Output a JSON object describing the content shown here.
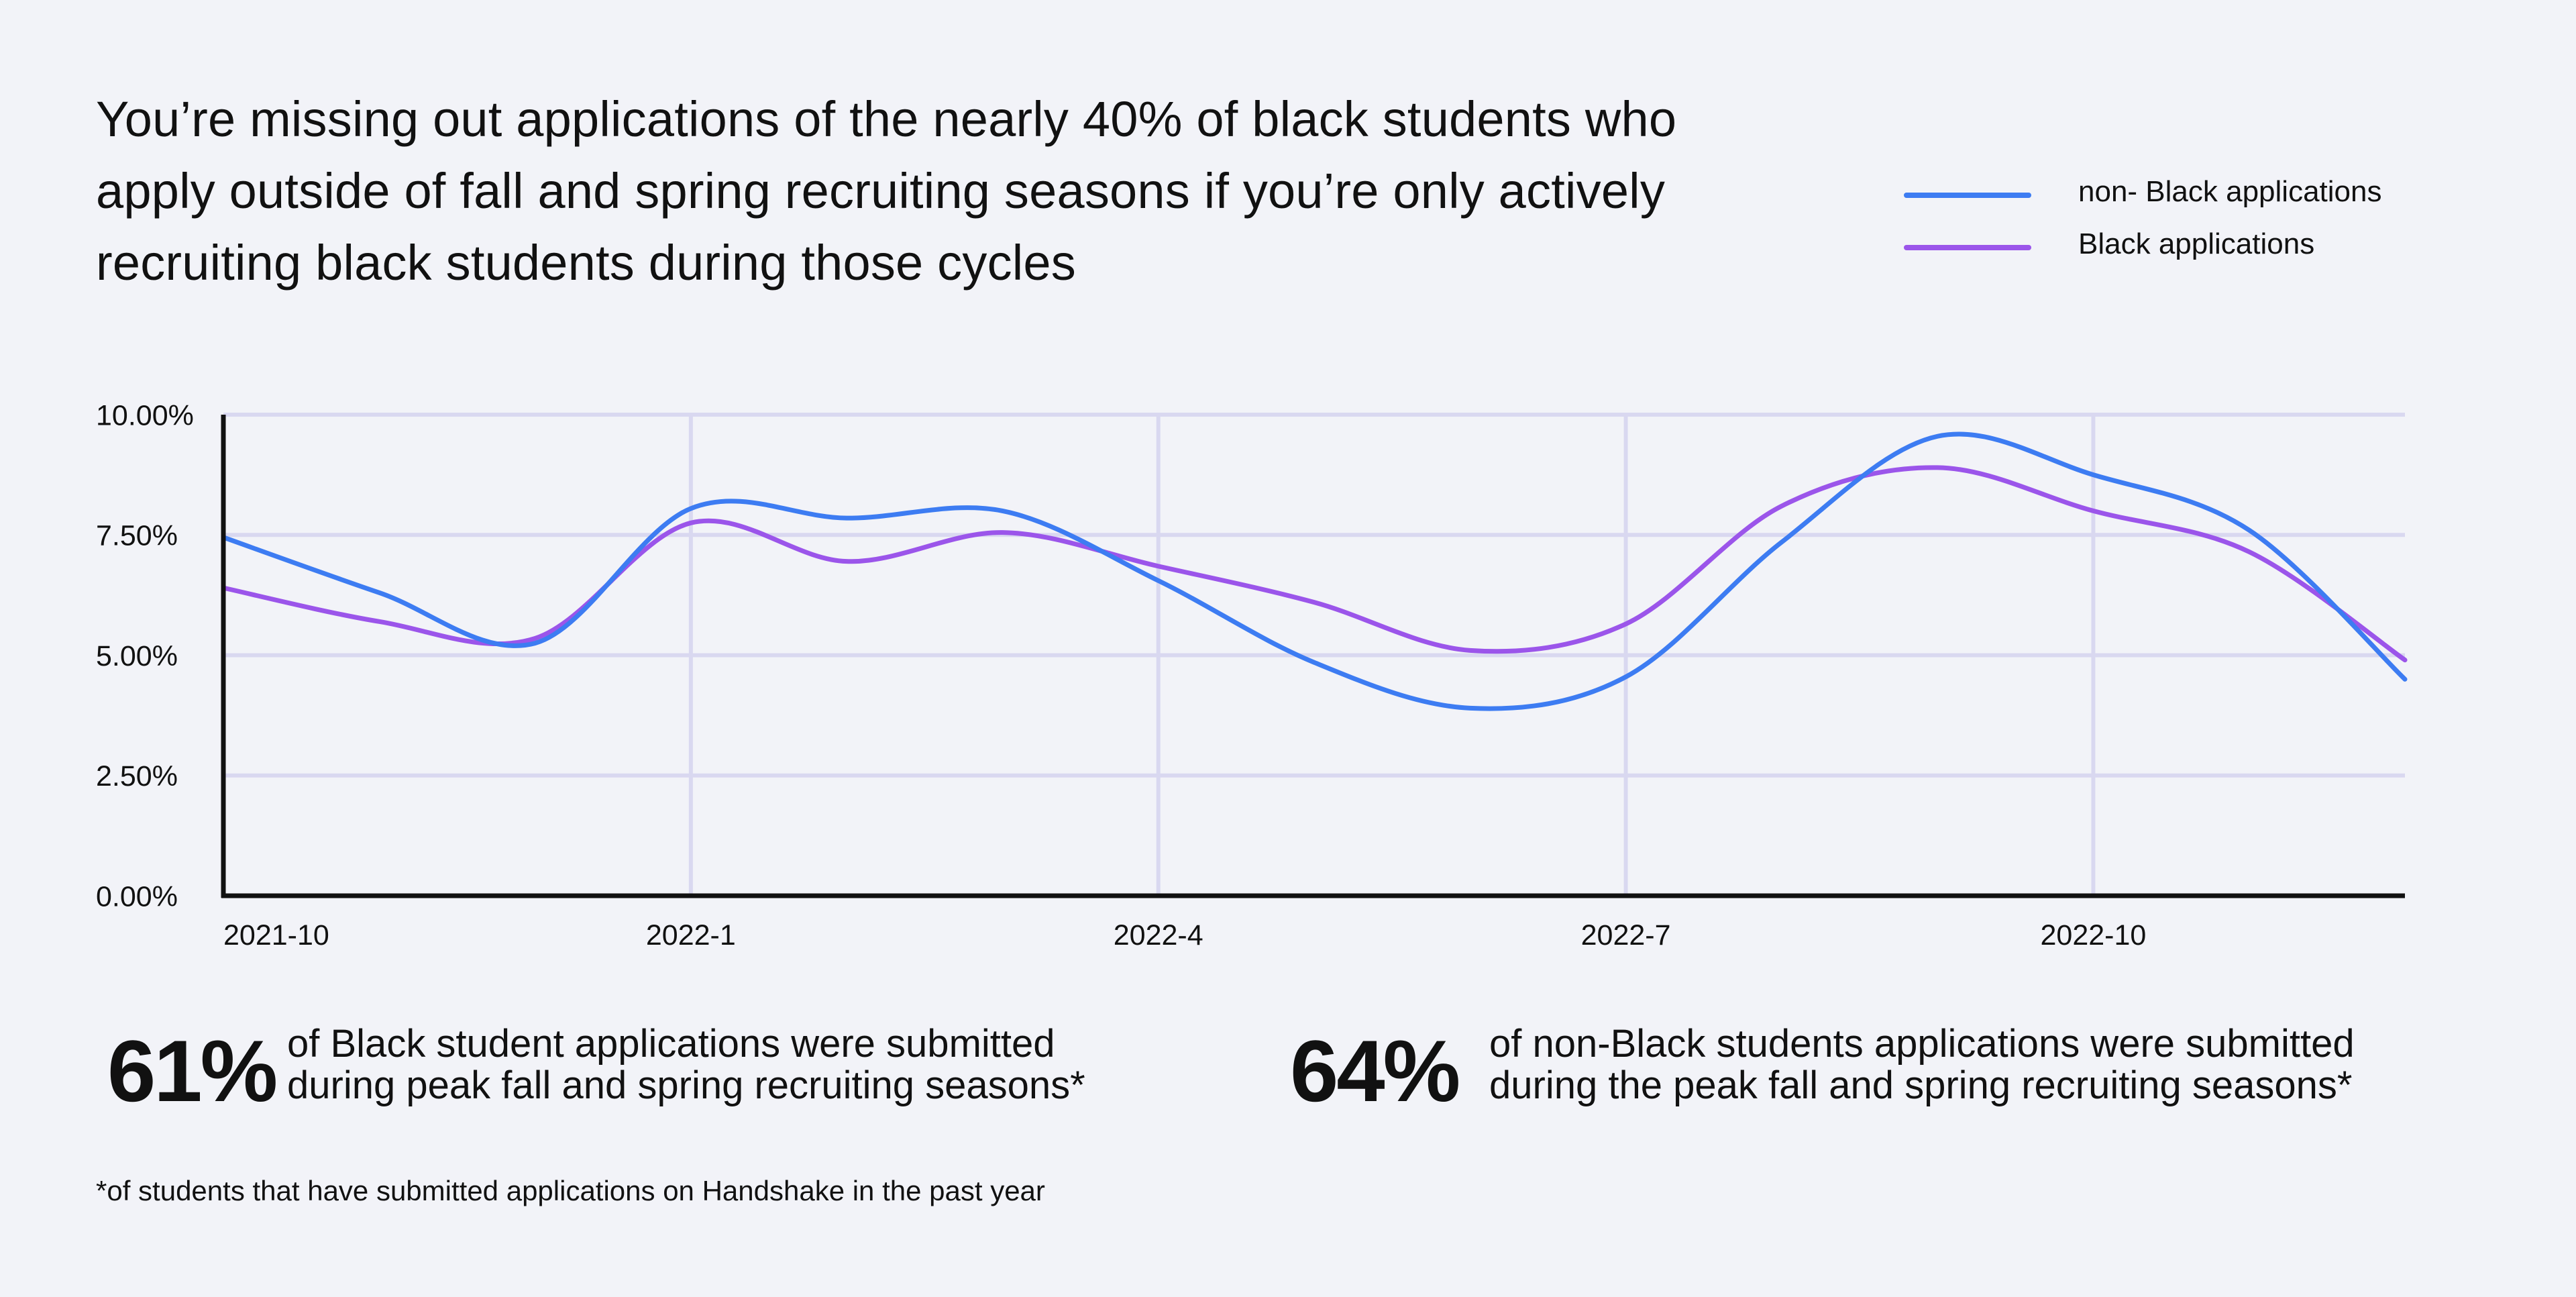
{
  "headline": "You’re missing out applications of the nearly 40% of black students who apply outside of fall and spring recruiting seasons if you’re only actively recruiting black students during those cycles",
  "colors": {
    "background": "#f2f3f8",
    "non_black": "#3d7cf2",
    "black": "#9b55ea",
    "grid": "#d9d8f0",
    "axis": "#111111"
  },
  "chart_data": {
    "type": "line",
    "title": "",
    "xlabel": "",
    "ylabel": "",
    "x": [
      "2021-10",
      "2021-11",
      "2021-12",
      "2022-1",
      "2022-2",
      "2022-3",
      "2022-4",
      "2022-5",
      "2022-6",
      "2022-7",
      "2022-8",
      "2022-9",
      "2022-10",
      "2022-11",
      "2022-12"
    ],
    "x_tick_labels": [
      "2021-10",
      "2022-1",
      "2022-4",
      "2022-7",
      "2022-10"
    ],
    "x_tick_indices": [
      0,
      3,
      6,
      9,
      12
    ],
    "y_ticks": [
      0,
      2.5,
      5,
      7.5,
      10
    ],
    "y_tick_labels": [
      "0.00%",
      "2.50%",
      "5.00%",
      "7.50%",
      "10.00%"
    ],
    "ylim": [
      0,
      10
    ],
    "grid": true,
    "legend_position": "top-right",
    "series": [
      {
        "name": "non- Black applications",
        "color": "#3d7cf2",
        "values": [
          7.45,
          6.3,
          5.25,
          8.05,
          7.85,
          8.0,
          6.55,
          4.85,
          3.9,
          4.55,
          7.35,
          9.55,
          8.75,
          7.6,
          4.5
        ]
      },
      {
        "name": "Black applications",
        "color": "#9b55ea",
        "values": [
          6.4,
          5.7,
          5.35,
          7.75,
          6.95,
          7.55,
          6.85,
          6.1,
          5.1,
          5.65,
          8.1,
          8.9,
          8.0,
          7.15,
          4.9
        ]
      }
    ]
  },
  "stats": [
    {
      "number": "61%",
      "line1": "of Black student applications were submitted",
      "line2": "during peak fall and spring recruiting seasons*"
    },
    {
      "number": "64%",
      "line1": "of non-Black students applications were submitted",
      "line2": "during the peak fall and spring recruiting seasons*"
    }
  ],
  "footnote": "*of students that have submitted applications on Handshake in the past year"
}
